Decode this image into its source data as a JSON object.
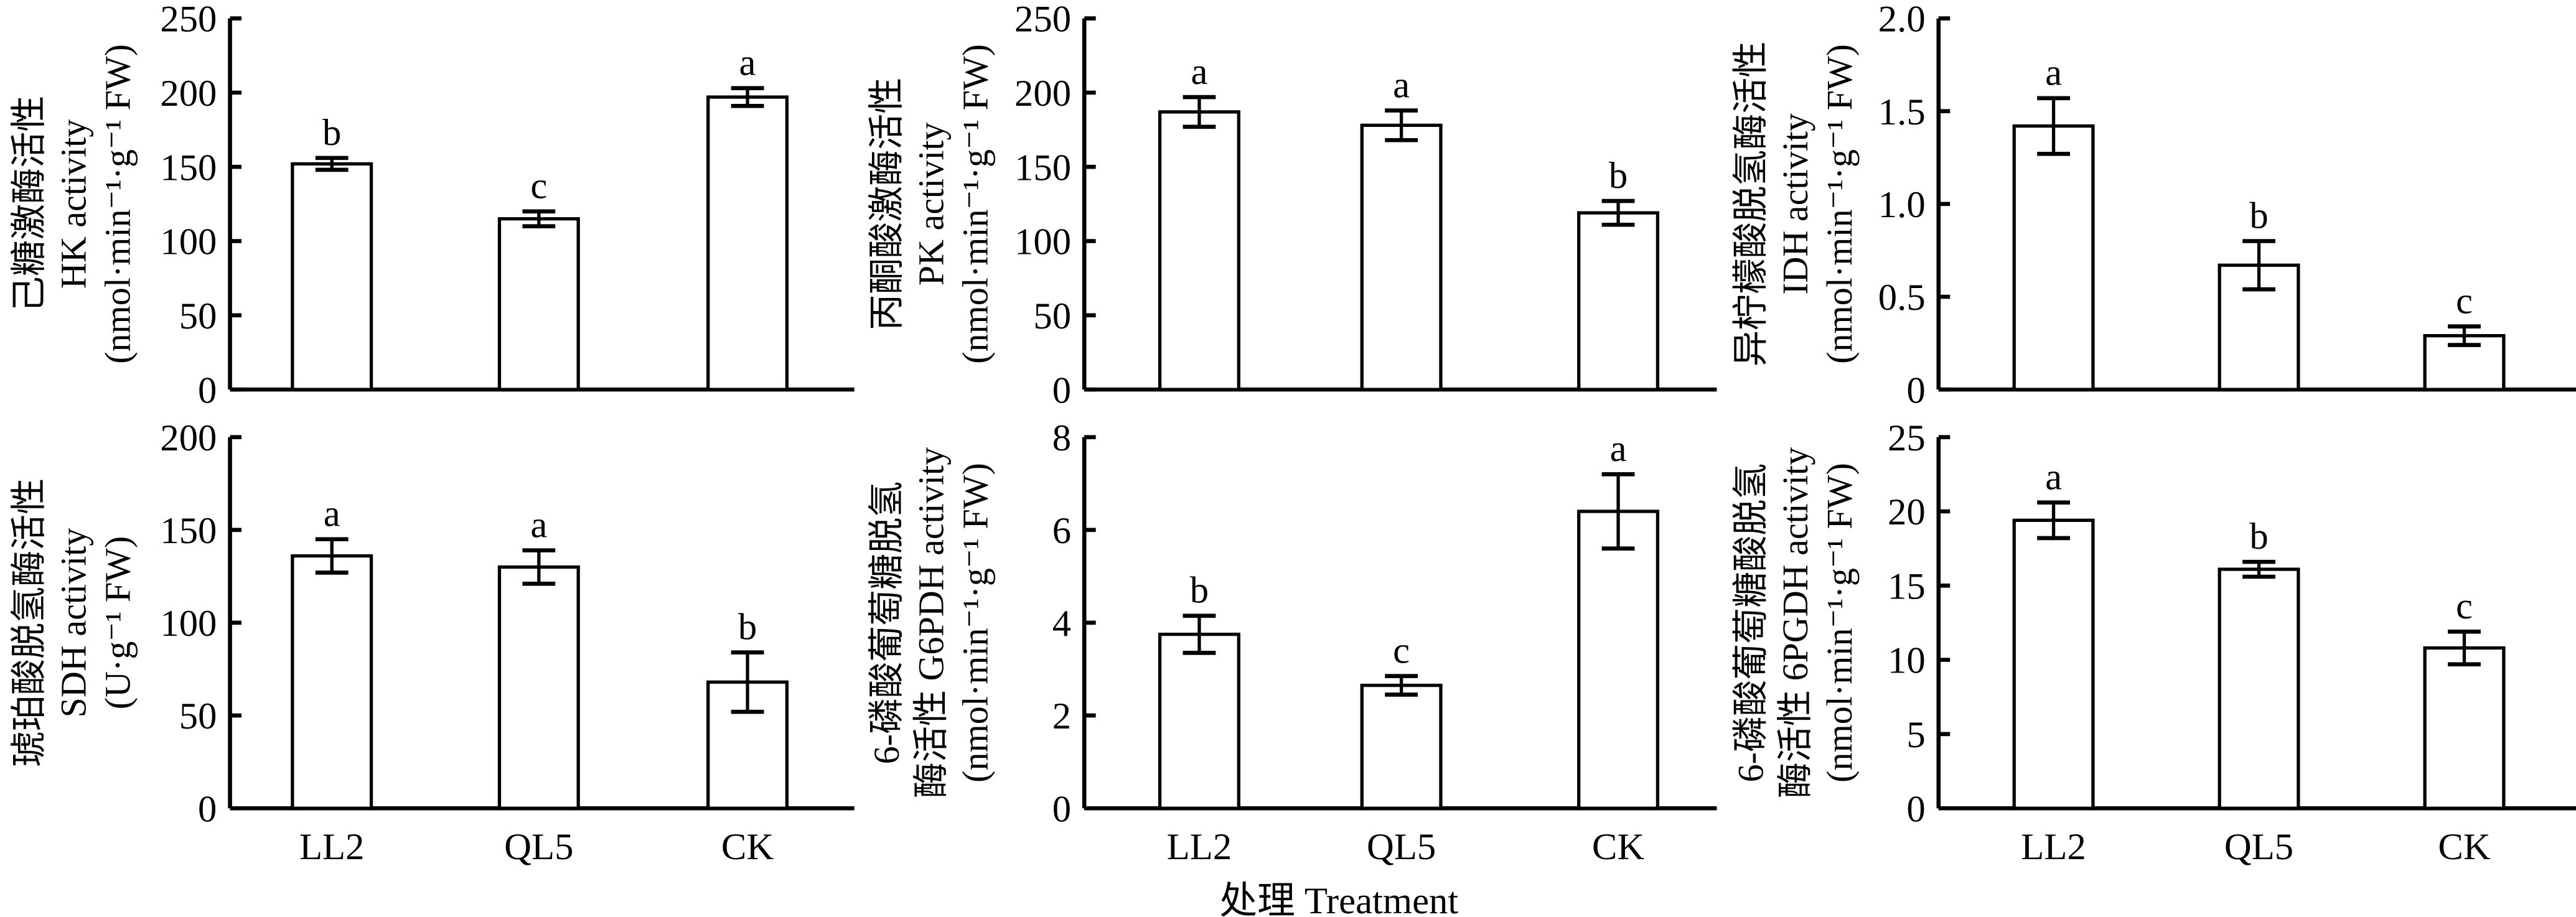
{
  "chart_data": [
    {
      "type": "bar",
      "id": "hk",
      "ylabel_lines": [
        "己糖激酶活性",
        "HK activity",
        "(nmol·min⁻¹·g⁻¹ FW)"
      ],
      "ylim": [
        0,
        250
      ],
      "ticks": [
        0,
        50,
        100,
        150,
        200,
        250
      ],
      "tick_labels": [
        "0",
        "50",
        "100",
        "150",
        "200",
        "250"
      ],
      "categories": [
        "LL2",
        "QL5",
        "CK"
      ],
      "values": [
        152,
        115,
        197
      ],
      "errors": [
        4,
        5,
        6
      ],
      "letters": [
        "b",
        "c",
        "a"
      ]
    },
    {
      "type": "bar",
      "id": "pk",
      "ylabel_lines": [
        "丙酮酸激酶活性",
        "PK activity",
        "(nmol·min⁻¹·g⁻¹ FW)"
      ],
      "ylim": [
        0,
        250
      ],
      "ticks": [
        0,
        50,
        100,
        150,
        200,
        250
      ],
      "tick_labels": [
        "0",
        "50",
        "100",
        "150",
        "200",
        "250"
      ],
      "categories": [
        "LL2",
        "QL5",
        "CK"
      ],
      "values": [
        187,
        178,
        119
      ],
      "errors": [
        10,
        10,
        8
      ],
      "letters": [
        "a",
        "a",
        "b"
      ]
    },
    {
      "type": "bar",
      "id": "idh",
      "ylabel_lines": [
        "异柠檬酸脱氢酶活性",
        "IDH activity",
        "(nmol·min⁻¹·g⁻¹ FW)"
      ],
      "ylim": [
        0,
        2
      ],
      "ticks": [
        0,
        0.5,
        1,
        1.5,
        2
      ],
      "tick_labels": [
        "0",
        "0.5",
        "1.0",
        "1.5",
        "2.0"
      ],
      "categories": [
        "LL2",
        "QL5",
        "CK"
      ],
      "values": [
        1.42,
        0.67,
        0.29
      ],
      "errors": [
        0.15,
        0.13,
        0.05
      ],
      "letters": [
        "a",
        "b",
        "c"
      ]
    },
    {
      "type": "bar",
      "id": "sdh",
      "ylabel_lines": [
        "琥珀酸脱氢酶活性",
        "SDH activity",
        "(U·g⁻¹ FW)"
      ],
      "ylim": [
        0,
        200
      ],
      "ticks": [
        0,
        50,
        100,
        150,
        200
      ],
      "tick_labels": [
        "0",
        "50",
        "100",
        "150",
        "200"
      ],
      "categories": [
        "LL2",
        "QL5",
        "CK"
      ],
      "values": [
        136,
        130,
        68
      ],
      "errors": [
        9,
        9,
        16
      ],
      "letters": [
        "a",
        "a",
        "b"
      ]
    },
    {
      "type": "bar",
      "id": "g6pdh",
      "ylabel_lines": [
        "6-磷酸葡萄糖脱氢",
        "酶活性 G6PDH activity",
        "(nmol·min⁻¹·g⁻¹ FW)"
      ],
      "ylim": [
        0,
        8
      ],
      "ticks": [
        0,
        2,
        4,
        6,
        8
      ],
      "tick_labels": [
        "0",
        "2",
        "4",
        "6",
        "8"
      ],
      "categories": [
        "LL2",
        "QL5",
        "CK"
      ],
      "values": [
        3.75,
        2.65,
        6.4
      ],
      "errors": [
        0.4,
        0.2,
        0.8
      ],
      "letters": [
        "b",
        "c",
        "a"
      ]
    },
    {
      "type": "bar",
      "id": "6pgdh",
      "ylabel_lines": [
        "6-磷酸葡萄糖酸脱氢",
        "酶活性 6PGDH activity",
        "(nmol·min⁻¹·g⁻¹ FW)"
      ],
      "ylim": [
        0,
        25
      ],
      "ticks": [
        0,
        5,
        10,
        15,
        20,
        25
      ],
      "tick_labels": [
        "0",
        "5",
        "10",
        "15",
        "20",
        "25"
      ],
      "categories": [
        "LL2",
        "QL5",
        "CK"
      ],
      "values": [
        19.4,
        16.1,
        10.8
      ],
      "errors": [
        1.2,
        0.5,
        1.1
      ],
      "letters": [
        "a",
        "b",
        "c"
      ]
    }
  ],
  "xlabel": "处理 Treatment"
}
